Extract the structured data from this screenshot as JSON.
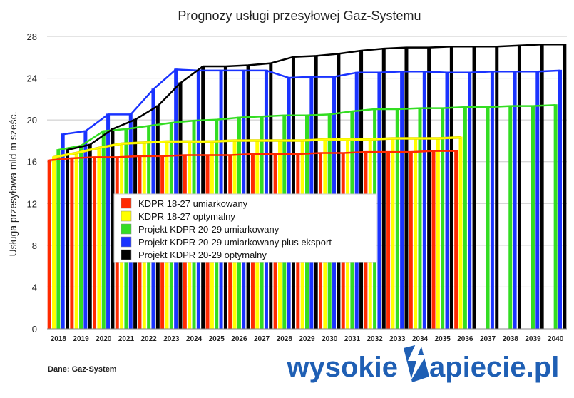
{
  "chart_data": {
    "type": "bar",
    "title": "Prognozy usługi przesyłowej Gaz-Systemu",
    "ylabel": "Usługa przesyłowa mld m sześc.",
    "xlabel": "",
    "ylim": [
      0,
      28
    ],
    "yticks": [
      "0",
      "4",
      "8",
      "12",
      "16",
      "20",
      "24",
      "28"
    ],
    "categories": [
      "2018",
      "2019",
      "2020",
      "2021",
      "2022",
      "2023",
      "2024",
      "2025",
      "2026",
      "2027",
      "2028",
      "2029",
      "2030",
      "2031",
      "2032",
      "2033",
      "2034",
      "2035",
      "2036",
      "2037",
      "2038",
      "2039",
      "2040"
    ],
    "grid": true,
    "legend_position": "center-left",
    "series": [
      {
        "name": "KDPR 18-27 umiarkowany",
        "color": "#ff2a00",
        "values": [
          16.2,
          16.4,
          16.5,
          16.5,
          16.6,
          16.6,
          16.7,
          16.7,
          16.7,
          16.8,
          16.8,
          16.8,
          16.9,
          16.9,
          17.0,
          17.0,
          17.0,
          17.1,
          17.1,
          null,
          null,
          null,
          null
        ]
      },
      {
        "name": "KDPR 18-27 optymalny",
        "color": "#ffff00",
        "values": [
          16.5,
          16.9,
          17.4,
          17.8,
          17.9,
          18.0,
          18.0,
          18.0,
          18.1,
          18.1,
          18.1,
          18.1,
          18.2,
          18.2,
          18.2,
          18.3,
          18.3,
          18.3,
          18.4,
          null,
          null,
          null,
          null
        ]
      },
      {
        "name": "Projekt KDPR 20-29 umiarkowany",
        "color": "#33dd22",
        "values": [
          17.2,
          17.6,
          19.0,
          19.2,
          19.5,
          19.8,
          20.0,
          20.1,
          20.3,
          20.4,
          20.5,
          20.5,
          20.6,
          20.9,
          21.1,
          21.1,
          21.2,
          21.2,
          21.3,
          21.3,
          21.4,
          21.4,
          21.5
        ]
      },
      {
        "name": "Projekt KDPR 20-29 umiarkowany plus eksport",
        "color": "#1a33ff",
        "values": [
          18.7,
          19.0,
          20.6,
          20.6,
          23.0,
          24.9,
          24.8,
          24.8,
          24.8,
          24.8,
          24.1,
          24.2,
          24.2,
          24.6,
          24.6,
          24.7,
          24.7,
          24.6,
          24.6,
          24.7,
          24.7,
          24.7,
          24.8
        ]
      },
      {
        "name": "Projekt KDPR 20-29 optymalny",
        "color": "#000000",
        "values": [
          17.2,
          17.7,
          19.2,
          20.1,
          21.4,
          23.6,
          25.2,
          25.2,
          25.3,
          25.5,
          26.1,
          26.2,
          26.4,
          26.7,
          26.9,
          27.0,
          27.0,
          27.1,
          27.1,
          27.1,
          27.2,
          27.3,
          27.3
        ]
      }
    ]
  },
  "legend": {
    "items": [
      {
        "label": "KDPR 18-27 umiarkowany",
        "color": "#ff2a00"
      },
      {
        "label": "KDPR 18-27 optymalny",
        "color": "#ffff00"
      },
      {
        "label": "Projekt KDPR 20-29 umiarkowany",
        "color": "#33dd22"
      },
      {
        "label": "Projekt KDPR 20-29 umiarkowany plus eksport",
        "color": "#1a33ff"
      },
      {
        "label": "Projekt KDPR 20-29 optymalny",
        "color": "#000000"
      }
    ]
  },
  "footer": {
    "source": "Dane: Gaz-System",
    "brand_left": "wysokie",
    "brand_right": "apiecie.pl"
  }
}
